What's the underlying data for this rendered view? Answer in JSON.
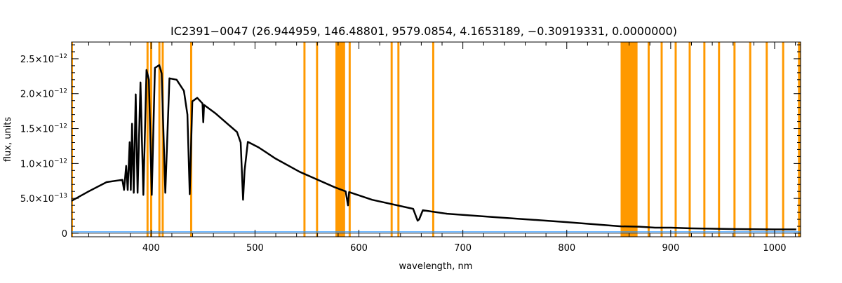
{
  "chart_data": {
    "type": "line",
    "title": "IC2391−0047    (26.944959, 146.48801, 9579.0854, 4.1653189, −0.30919331, 0.0000000)",
    "xlabel": "wavelength, nm",
    "ylabel": "flux, units",
    "xlim": [
      323.5,
      1025
    ],
    "ylim": [
      -5e-14,
      2.74e-12
    ],
    "x_ticks": [
      400,
      500,
      600,
      700,
      800,
      900,
      1000
    ],
    "x_tick_labels": [
      "400",
      "500",
      "600",
      "700",
      "800",
      "900",
      "1000"
    ],
    "y_ticks": [
      0,
      5e-13,
      1e-12,
      1.5e-12,
      2e-12,
      2.5e-12
    ],
    "y_tick_labels": [
      {
        "mant": "0",
        "exp": ""
      },
      {
        "mant": "5.0×10",
        "exp": "−13"
      },
      {
        "mant": "1.0×10",
        "exp": "−12"
      },
      {
        "mant": "1.5×10",
        "exp": "−12"
      },
      {
        "mant": "2.0×10",
        "exp": "−12"
      },
      {
        "mant": "2.5×10",
        "exp": "−12"
      }
    ],
    "colors": {
      "flux": "#000000",
      "error": "#1e90ff",
      "mask": "#ff9900"
    },
    "series": [
      {
        "name": "flux",
        "points_e12": [
          [
            323.6,
            0.465
          ],
          [
            340,
            0.6
          ],
          [
            357.2,
            0.733
          ],
          [
            372.4,
            0.766
          ],
          [
            374,
            0.62
          ],
          [
            376,
            0.967
          ],
          [
            377.5,
            0.62
          ],
          [
            379.4,
            1.305
          ],
          [
            380.5,
            0.62
          ],
          [
            381.7,
            1.57
          ],
          [
            383.3,
            0.58
          ],
          [
            385.2,
            1.99
          ],
          [
            387,
            0.58
          ],
          [
            389.8,
            2.16
          ],
          [
            392.6,
            0.55
          ],
          [
            395.6,
            2.34
          ],
          [
            397.9,
            2.2
          ],
          [
            400.7,
            0.55
          ],
          [
            403.7,
            2.37
          ],
          [
            407.9,
            2.41
          ],
          [
            410.2,
            2.29
          ],
          [
            413.7,
            0.58
          ],
          [
            417.7,
            2.22
          ],
          [
            424.6,
            2.2
          ],
          [
            431.6,
            2.04
          ],
          [
            435,
            1.7
          ],
          [
            437.2,
            0.56
          ],
          [
            439.7,
            1.89
          ],
          [
            444.4,
            1.94
          ],
          [
            449.5,
            1.86
          ],
          [
            450.2,
            1.59
          ],
          [
            451,
            1.84
          ],
          [
            461.8,
            1.72
          ],
          [
            473.4,
            1.57
          ],
          [
            482.7,
            1.45
          ],
          [
            486.2,
            1.3
          ],
          [
            488.5,
            0.48
          ],
          [
            490,
            0.9
          ],
          [
            493.1,
            1.31
          ],
          [
            503.6,
            1.23
          ],
          [
            519.8,
            1.07
          ],
          [
            543,
            0.88
          ],
          [
            576.7,
            0.66
          ],
          [
            587.2,
            0.6
          ],
          [
            589.5,
            0.4
          ],
          [
            590.5,
            0.59
          ],
          [
            612.7,
            0.48
          ],
          [
            652.2,
            0.35
          ],
          [
            656.5,
            0.18
          ],
          [
            658,
            0.2
          ],
          [
            661.5,
            0.33
          ],
          [
            684.7,
            0.28
          ],
          [
            731.8,
            0.23
          ],
          [
            800,
            0.16
          ],
          [
            852.2,
            0.1
          ],
          [
            870,
            0.095
          ],
          [
            885,
            0.08
          ],
          [
            900.3,
            0.08
          ],
          [
            920,
            0.07
          ],
          [
            960,
            0.06
          ],
          [
            1000,
            0.055
          ],
          [
            1020.8,
            0.055
          ]
        ]
      },
      {
        "name": "error",
        "points_e12": [
          [
            323.6,
            0.02
          ],
          [
            490,
            0.02
          ],
          [
            1025,
            0.02
          ]
        ]
      }
    ],
    "masked_bands_nm": [
      [
        323.5,
        324.8
      ],
      [
        395.6,
        397.6
      ],
      [
        399.1,
        401.1
      ],
      [
        407,
        409
      ],
      [
        410.2,
        412.2
      ],
      [
        437.6,
        439.6
      ],
      [
        546.6,
        548.6
      ],
      [
        558.7,
        560.7
      ],
      [
        577.4,
        586.7
      ],
      [
        590.1,
        592.1
      ],
      [
        630.5,
        632.5
      ],
      [
        637,
        639
      ],
      [
        670.5,
        672.5
      ],
      [
        851.8,
        868.1
      ],
      [
        877.8,
        879.8
      ],
      [
        890.3,
        892.3
      ],
      [
        903.8,
        905.8
      ],
      [
        917.3,
        919.3
      ],
      [
        931.4,
        933.4
      ],
      [
        945.5,
        947.5
      ],
      [
        960.4,
        962.4
      ],
      [
        975.5,
        977.5
      ],
      [
        991.4,
        993.4
      ],
      [
        1007.2,
        1009.2
      ],
      [
        1022.5,
        1025
      ]
    ]
  }
}
